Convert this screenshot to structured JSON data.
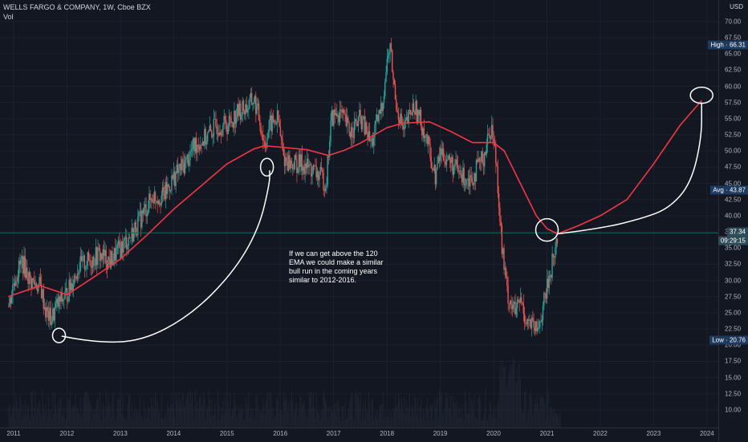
{
  "header": {
    "title": "WELLS FARGO & COMPANY, 1W, Cboe BZX",
    "volume_label": "Vol"
  },
  "currency": "USD",
  "colors": {
    "background": "#131722",
    "up_candle": "#26a69a",
    "down_candle": "#ef5350",
    "ema_line": "#f23645",
    "drawing": "#ffffff",
    "price_line": "#1e5c57"
  },
  "tags": {
    "high": "High · 66.31",
    "avg": "Avg · 43.87",
    "price": "37.34",
    "timer": "09:29:15",
    "low": "Low · 20.76"
  },
  "note": "If we can get above the 120 EMA we could make a similar bull run in the coming years similar to 2012-2016.",
  "chart_data": {
    "type": "candlestick",
    "title": "WELLS FARGO & COMPANY, 1W, Cboe BZX",
    "ylabel": "",
    "xlabel": "",
    "ylim": [
      7.5,
      72.5
    ],
    "y_ticks": [
      "10.00",
      "12.50",
      "15.00",
      "17.50",
      "20.00",
      "22.50",
      "25.00",
      "27.50",
      "30.00",
      "32.50",
      "35.00",
      "37.50",
      "40.00",
      "42.50",
      "45.00",
      "47.50",
      "50.00",
      "52.50",
      "55.00",
      "57.50",
      "60.00",
      "62.50",
      "65.00",
      "67.50",
      "70.00"
    ],
    "x_ticks": [
      "2011",
      "2012",
      "2013",
      "2014",
      "2015",
      "2016",
      "2017",
      "2018",
      "2019",
      "2020",
      "2021",
      "2022",
      "2023",
      "2024"
    ],
    "price_path": [
      [
        2010.9,
        26
      ],
      [
        2011.0,
        30
      ],
      [
        2011.15,
        33
      ],
      [
        2011.3,
        30
      ],
      [
        2011.5,
        29
      ],
      [
        2011.6,
        25
      ],
      [
        2011.7,
        24
      ],
      [
        2011.8,
        26
      ],
      [
        2012.0,
        28
      ],
      [
        2012.2,
        32
      ],
      [
        2012.4,
        33
      ],
      [
        2012.6,
        34
      ],
      [
        2012.8,
        33
      ],
      [
        2013.0,
        35
      ],
      [
        2013.2,
        37
      ],
      [
        2013.4,
        40
      ],
      [
        2013.6,
        43
      ],
      [
        2013.8,
        43
      ],
      [
        2014.0,
        46
      ],
      [
        2014.2,
        48
      ],
      [
        2014.4,
        51
      ],
      [
        2014.6,
        52
      ],
      [
        2014.8,
        54
      ],
      [
        2015.0,
        54
      ],
      [
        2015.2,
        56
      ],
      [
        2015.4,
        57
      ],
      [
        2015.5,
        58
      ],
      [
        2015.6,
        55
      ],
      [
        2015.7,
        51
      ],
      [
        2015.8,
        54
      ],
      [
        2015.95,
        55
      ],
      [
        2016.05,
        49
      ],
      [
        2016.2,
        48
      ],
      [
        2016.4,
        48
      ],
      [
        2016.6,
        47
      ],
      [
        2016.75,
        46
      ],
      [
        2016.85,
        45
      ],
      [
        2016.95,
        55
      ],
      [
        2017.1,
        56
      ],
      [
        2017.3,
        53
      ],
      [
        2017.5,
        55
      ],
      [
        2017.7,
        51
      ],
      [
        2017.9,
        57
      ],
      [
        2018.0,
        64
      ],
      [
        2018.05,
        66.3
      ],
      [
        2018.15,
        58
      ],
      [
        2018.3,
        53
      ],
      [
        2018.5,
        57
      ],
      [
        2018.7,
        53
      ],
      [
        2018.9,
        46
      ],
      [
        2019.0,
        50
      ],
      [
        2019.2,
        48
      ],
      [
        2019.4,
        46
      ],
      [
        2019.6,
        46
      ],
      [
        2019.8,
        49
      ],
      [
        2019.95,
        54
      ],
      [
        2020.05,
        48
      ],
      [
        2020.15,
        35
      ],
      [
        2020.25,
        28
      ],
      [
        2020.4,
        25
      ],
      [
        2020.5,
        27
      ],
      [
        2020.6,
        24
      ],
      [
        2020.7,
        23
      ],
      [
        2020.8,
        22
      ],
      [
        2020.9,
        25
      ],
      [
        2021.0,
        29
      ],
      [
        2021.1,
        33
      ],
      [
        2021.2,
        37
      ]
    ],
    "ema_label": "120 EMA",
    "ema": [
      [
        2010.9,
        27.5
      ],
      [
        2011.5,
        29.2
      ],
      [
        2012.0,
        27.8
      ],
      [
        2012.5,
        30.5
      ],
      [
        2013.0,
        33.3
      ],
      [
        2013.5,
        37
      ],
      [
        2014.0,
        41
      ],
      [
        2014.5,
        44.5
      ],
      [
        2015.0,
        48
      ],
      [
        2015.5,
        50.3
      ],
      [
        2015.7,
        50.8
      ],
      [
        2016.0,
        50.6
      ],
      [
        2016.5,
        50.2
      ],
      [
        2016.9,
        49.3
      ],
      [
        2017.2,
        50.1
      ],
      [
        2017.5,
        51.2
      ],
      [
        2018.0,
        53.6
      ],
      [
        2018.3,
        54.3
      ],
      [
        2018.8,
        54.5
      ],
      [
        2019.2,
        53
      ],
      [
        2019.6,
        51.3
      ],
      [
        2020.0,
        51.3
      ],
      [
        2020.2,
        50
      ],
      [
        2020.5,
        45
      ],
      [
        2020.8,
        40
      ],
      [
        2021.0,
        38
      ],
      [
        2021.2,
        37.2
      ]
    ],
    "projection": [
      [
        2021.2,
        37.2
      ],
      [
        2021.6,
        38.5
      ],
      [
        2022.0,
        40
      ],
      [
        2022.5,
        42.5
      ],
      [
        2023.0,
        48
      ],
      [
        2023.5,
        54
      ],
      [
        2023.9,
        57.8
      ]
    ],
    "annotation_arrows": [
      [
        [
          2011.9,
          21.4
        ],
        [
          2012.5,
          20.4
        ],
        [
          2013.4,
          20.6
        ],
        [
          2014.3,
          24.5
        ],
        [
          2015.1,
          31
        ],
        [
          2015.6,
          38
        ],
        [
          2015.8,
          45
        ],
        [
          2015.8,
          47
        ]
      ],
      [
        [
          2021.2,
          37.2
        ],
        [
          2022.0,
          38.0
        ],
        [
          2022.8,
          39.6
        ],
        [
          2023.3,
          41.2
        ],
        [
          2023.7,
          45
        ],
        [
          2023.9,
          52
        ],
        [
          2023.9,
          57.5
        ]
      ]
    ],
    "circles": [
      [
        2011.85,
        21.5
      ],
      [
        2015.75,
        47.5
      ],
      [
        2021.0,
        37.8
      ],
      [
        2023.9,
        58.6
      ]
    ],
    "current_price": 37.34,
    "high": 66.31,
    "avg": 43.87,
    "low": 20.76
  }
}
